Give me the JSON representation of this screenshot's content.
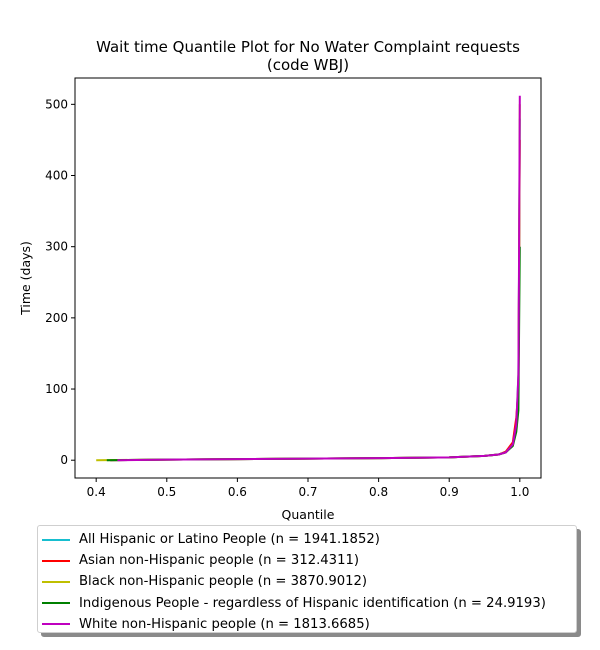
{
  "chart_data": {
    "type": "line",
    "title": [
      "Wait time Quantile Plot for No Water Complaint  requests",
      "(code WBJ)"
    ],
    "xlabel": "Quantile",
    "ylabel": "Time (days)",
    "xlim": [
      0.37,
      1.03
    ],
    "ylim": [
      -25,
      537
    ],
    "xticks": [
      0.4,
      0.5,
      0.6,
      0.7,
      0.8,
      0.9,
      1.0
    ],
    "xtick_labels": [
      "0.4",
      "0.5",
      "0.6",
      "0.7",
      "0.8",
      "0.9",
      "1.0"
    ],
    "yticks": [
      0,
      100,
      200,
      300,
      400,
      500
    ],
    "ytick_labels": [
      "0",
      "100",
      "200",
      "300",
      "400",
      "500"
    ],
    "grid": false,
    "legend_position": "below-plot",
    "series": [
      {
        "name": "All Hispanic or Latino People (n = 1941.1852)",
        "color": "#17becf",
        "x": [
          0.42,
          0.5,
          0.6,
          0.7,
          0.8,
          0.9,
          0.95,
          0.97,
          0.98,
          0.99,
          0.995,
          0.998,
          0.999,
          1.0
        ],
        "y": [
          0,
          0.8,
          1.5,
          2.2,
          3.0,
          4.0,
          6,
          8,
          11,
          22,
          45,
          120,
          280,
          480
        ]
      },
      {
        "name": "Asian non-Hispanic people (n = 312.4311)",
        "color": "#ff0000",
        "x": [
          0.42,
          0.5,
          0.6,
          0.7,
          0.8,
          0.9,
          0.95,
          0.97,
          0.98,
          0.99,
          0.995,
          0.998,
          1.0
        ],
        "y": [
          0,
          0.8,
          1.5,
          2.2,
          3.0,
          4.0,
          6,
          8,
          12,
          25,
          60,
          100,
          450
        ]
      },
      {
        "name": "Black non-Hispanic people (n = 3870.9012)",
        "color": "#bfbf00",
        "x": [
          0.4,
          0.5,
          0.6,
          0.7,
          0.8,
          0.9,
          0.95,
          0.97,
          0.98,
          0.99,
          0.995,
          0.998,
          0.999,
          1.0
        ],
        "y": [
          0,
          0.8,
          1.5,
          2.2,
          3.0,
          4.0,
          6,
          8,
          11,
          22,
          45,
          110,
          250,
          500
        ]
      },
      {
        "name": "Indigenous People - regardless of Hispanic identification (n = 24.9193)",
        "color": "#008000",
        "x": [
          0.415,
          0.5,
          0.6,
          0.7,
          0.8,
          0.9,
          0.95,
          0.97,
          0.98,
          0.99,
          0.995,
          0.998,
          1.0
        ],
        "y": [
          0,
          0.8,
          1.5,
          2.2,
          3.0,
          4.0,
          6,
          8,
          11,
          20,
          40,
          70,
          300
        ]
      },
      {
        "name": "White non-Hispanic people (n = 1813.6685)",
        "color": "#bf00bf",
        "x": [
          0.43,
          0.5,
          0.6,
          0.7,
          0.8,
          0.9,
          0.95,
          0.97,
          0.98,
          0.99,
          0.995,
          0.998,
          0.999,
          1.0
        ],
        "y": [
          0,
          0.8,
          1.5,
          2.2,
          3.0,
          4.0,
          6,
          8,
          11,
          22,
          50,
          120,
          300,
          512
        ]
      }
    ]
  }
}
